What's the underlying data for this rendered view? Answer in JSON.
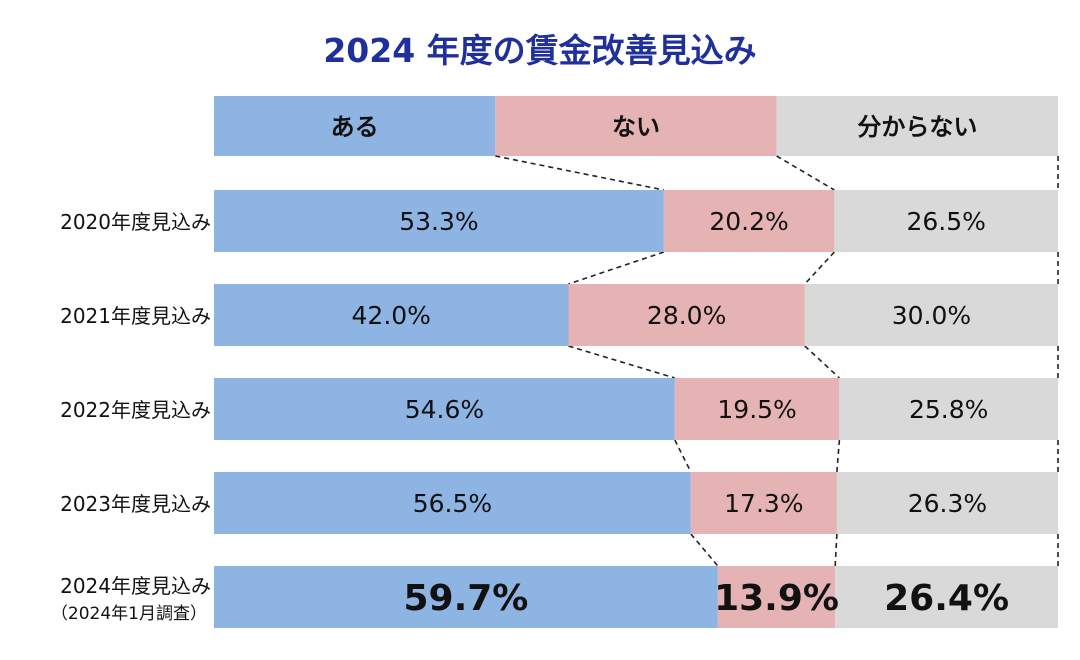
{
  "chart_data": {
    "type": "bar",
    "stacked": true,
    "orientation": "horizontal",
    "normalized": true,
    "title": "2024 年度の賃金改善見込み",
    "legend_placement": "top",
    "categories": [
      [
        "2020年度見込み"
      ],
      [
        "2021年度見込み"
      ],
      [
        "2022年度見込み"
      ],
      [
        "2023年度見込み"
      ],
      [
        "2024年度見込み",
        "（2024年1月調査）"
      ]
    ],
    "series": [
      {
        "name": "ある",
        "color": "#8eb4e3",
        "values": [
          53.3,
          42.0,
          54.6,
          56.5,
          59.7
        ],
        "labels": [
          "53.3%",
          "42.0%",
          "54.6%",
          "56.5%",
          "59.7%"
        ]
      },
      {
        "name": "ない",
        "color": "#e6b3b5",
        "values": [
          20.2,
          28.0,
          19.5,
          17.3,
          13.9
        ],
        "labels": [
          "20.2%",
          "28.0%",
          "19.5%",
          "17.3%",
          "13.9%"
        ]
      },
      {
        "name": "分からない",
        "color": "#d9d9d9",
        "values": [
          26.5,
          30.0,
          25.8,
          26.3,
          26.4
        ],
        "labels": [
          "26.5%",
          "30.0%",
          "25.8%",
          "26.3%",
          "26.4%"
        ]
      }
    ],
    "highlight_last_category": true,
    "xlim": [
      0,
      100
    ],
    "grid": false
  }
}
